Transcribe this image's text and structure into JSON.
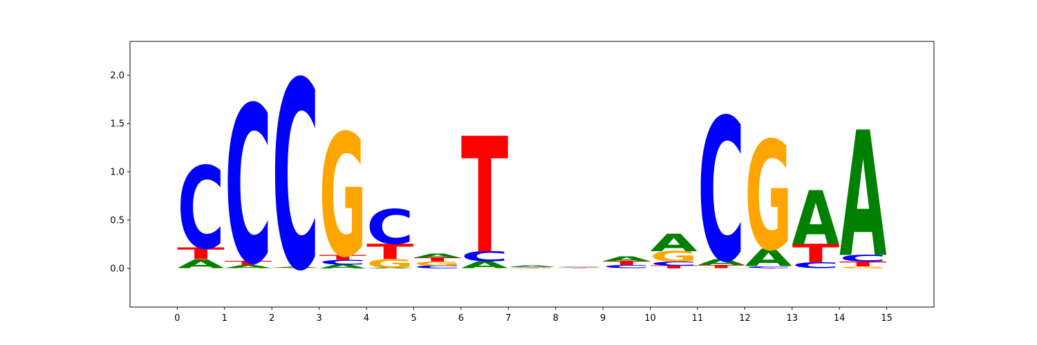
{
  "chart_data": {
    "type": "sequence-logo",
    "x_ticks": [
      "0",
      "1",
      "2",
      "3",
      "4",
      "5",
      "6",
      "7",
      "8",
      "9",
      "10",
      "11",
      "12",
      "13",
      "14",
      "15"
    ],
    "y_ticks": [
      "0.0",
      "0.5",
      "1.0",
      "1.5",
      "2.0"
    ],
    "xlim": [
      -1,
      16
    ],
    "ylim": [
      -0.4,
      2.35
    ],
    "colors": {
      "A": "#008000",
      "C": "#0000ff",
      "G": "#ffa500",
      "T": "#ff0000"
    },
    "positions": [
      {
        "x": 0,
        "letters": [
          [
            "G",
            0.005
          ],
          [
            "A",
            0.09
          ],
          [
            "T",
            0.12
          ],
          [
            "C",
            0.85
          ]
        ]
      },
      {
        "x": 1,
        "letters": [
          [
            "G",
            0.005
          ],
          [
            "A",
            0.03
          ],
          [
            "T",
            0.04
          ],
          [
            "C",
            1.63
          ]
        ]
      },
      {
        "x": 2,
        "letters": [
          [
            "G",
            0.003
          ],
          [
            "T",
            0.005
          ],
          [
            "A",
            0.008
          ],
          [
            "C",
            1.95
          ]
        ]
      },
      {
        "x": 3,
        "letters": [
          [
            "A",
            0.04
          ],
          [
            "C",
            0.05
          ],
          [
            "T",
            0.05
          ],
          [
            "G",
            1.27
          ]
        ]
      },
      {
        "x": 4,
        "letters": [
          [
            "A",
            0.008
          ],
          [
            "G",
            0.09
          ],
          [
            "T",
            0.16
          ],
          [
            "C",
            0.36
          ]
        ]
      },
      {
        "x": 5,
        "letters": [
          [
            "C",
            0.03
          ],
          [
            "G",
            0.04
          ],
          [
            "T",
            0.04
          ],
          [
            "A",
            0.04
          ]
        ]
      },
      {
        "x": 6,
        "letters": [
          [
            "G",
            0.005
          ],
          [
            "A",
            0.07
          ],
          [
            "C",
            0.1
          ],
          [
            "T",
            1.2
          ]
        ]
      },
      {
        "x": 7,
        "letters": [
          [
            "G",
            0.005
          ],
          [
            "T",
            0.005
          ],
          [
            "C",
            0.005
          ],
          [
            "A",
            0.02
          ]
        ]
      },
      {
        "x": 8,
        "letters": [
          [
            "T",
            0.006
          ],
          [
            "G",
            0.006
          ],
          [
            "C",
            0.006
          ],
          [
            "A",
            0.006
          ]
        ]
      },
      {
        "x": 9,
        "letters": [
          [
            "G",
            0.005
          ],
          [
            "C",
            0.03
          ],
          [
            "T",
            0.04
          ],
          [
            "A",
            0.05
          ]
        ]
      },
      {
        "x": 10,
        "letters": [
          [
            "T",
            0.03
          ],
          [
            "C",
            0.04
          ],
          [
            "G",
            0.11
          ],
          [
            "A",
            0.18
          ]
        ]
      },
      {
        "x": 11,
        "letters": [
          [
            "G",
            0.005
          ],
          [
            "T",
            0.03
          ],
          [
            "A",
            0.06
          ],
          [
            "C",
            1.48
          ]
        ]
      },
      {
        "x": 12,
        "letters": [
          [
            "T",
            0.005
          ],
          [
            "C",
            0.02
          ],
          [
            "A",
            0.18
          ],
          [
            "G",
            1.13
          ]
        ]
      },
      {
        "x": 13,
        "letters": [
          [
            "G",
            0.005
          ],
          [
            "C",
            0.06
          ],
          [
            "T",
            0.19
          ],
          [
            "A",
            0.56
          ]
        ]
      },
      {
        "x": 14,
        "letters": [
          [
            "G",
            0.02
          ],
          [
            "T",
            0.05
          ],
          [
            "C",
            0.07
          ],
          [
            "A",
            1.3
          ]
        ]
      }
    ]
  }
}
